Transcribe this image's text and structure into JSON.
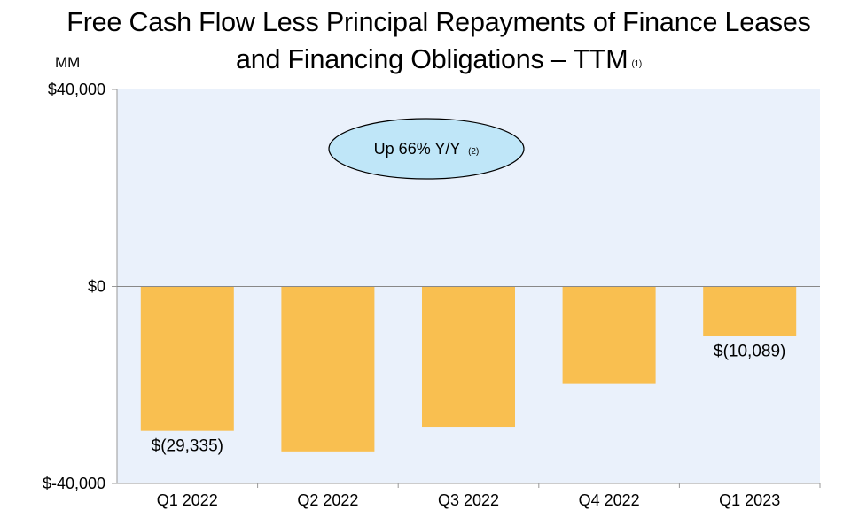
{
  "chart_data": {
    "type": "bar",
    "title": "Free Cash Flow Less Principal Repayments of Finance Leases and Financing Obligations – TTM",
    "title_line1": "Free Cash Flow Less Principal Repayments of Finance Leases",
    "title_line2": "and Financing Obligations – TTM",
    "title_footnote": "(1)",
    "unit_label": "MM",
    "categories": [
      "Q1 2022",
      "Q2 2022",
      "Q3 2022",
      "Q4 2022",
      "Q1 2023"
    ],
    "values": [
      -29335,
      -33500,
      -28500,
      -19800,
      -10089
    ],
    "data_labels": [
      "$(29,335)",
      "",
      "",
      "",
      "$(10,089)"
    ],
    "ylim": [
      -40000,
      40000
    ],
    "yticks": [
      {
        "value": 40000,
        "label": "$40,000"
      },
      {
        "value": 0,
        "label": "$0"
      },
      {
        "value": -40000,
        "label": "$-40,000"
      }
    ],
    "annotation": {
      "text": "Up 66% Y/Y",
      "footnote": "(2)"
    },
    "colors": {
      "bar": "#F9BF50",
      "plot_bg": "#EAF1FB",
      "ellipse_fill": "#BFE6F8",
      "zero_line": "#888888"
    },
    "xlabel": "",
    "ylabel": ""
  }
}
